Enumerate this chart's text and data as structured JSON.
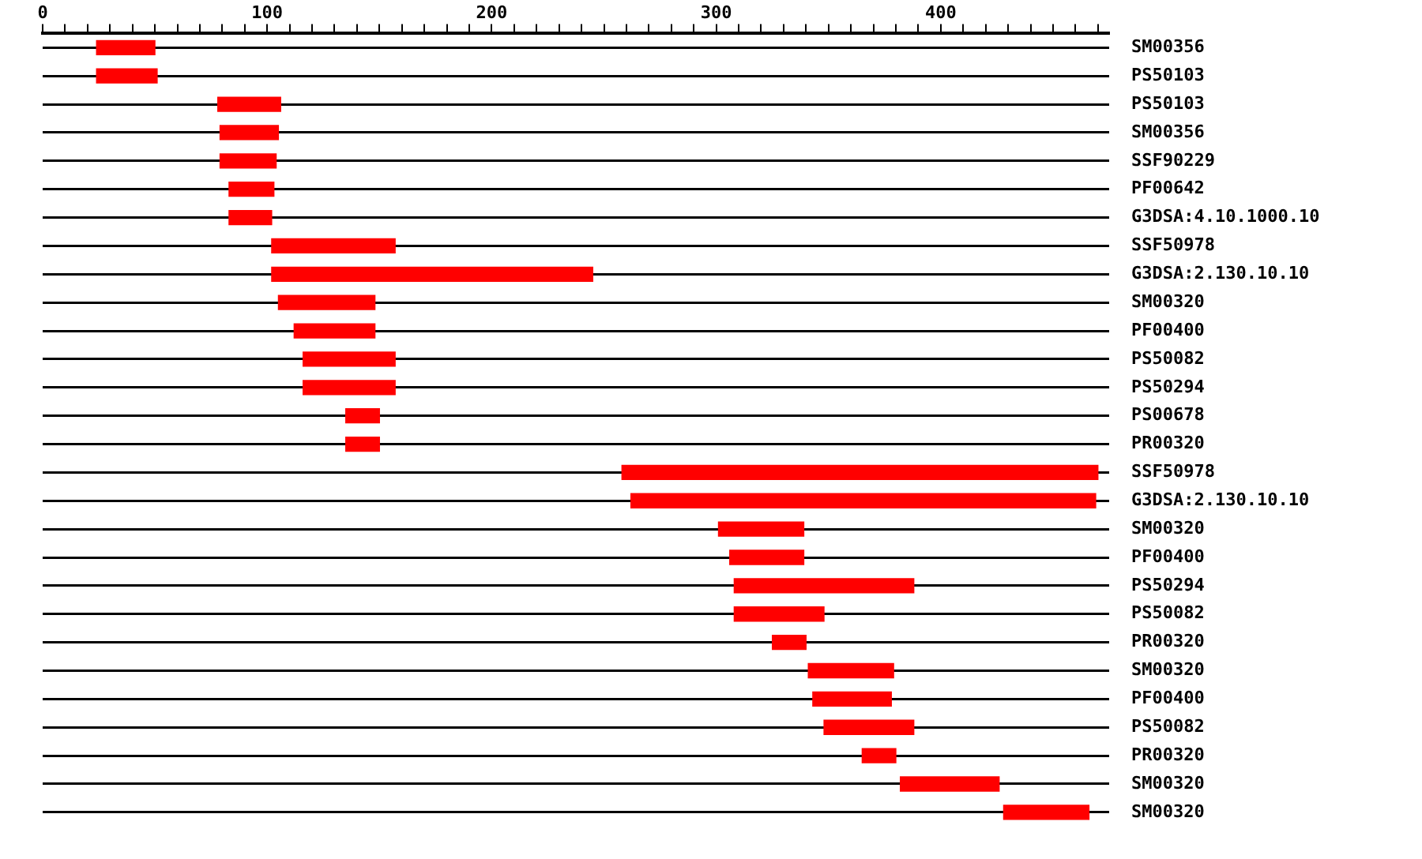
{
  "chart_data": {
    "type": "bar",
    "orientation": "horizontal",
    "grid": "y",
    "legend": false,
    "categories": [
      "SM00356",
      "PS50103",
      "PS50103",
      "SM00356",
      "SSF90229",
      "PF00642",
      "G3DSA:4.10.1000.10",
      "SSF50978",
      "G3DSA:2.130.10.10",
      "SM00320",
      "PF00400",
      "PS50082",
      "PS50294",
      "PS00678",
      "PR00320",
      "SSF50978",
      "G3DSA:2.130.10.10",
      "SM00320",
      "PF00400",
      "PS50294",
      "PS50082",
      "PR00320",
      "SM00320",
      "PF00400",
      "PS50082",
      "PR00320",
      "SM00320",
      "SM00320"
    ],
    "base": [
      24,
      24,
      78,
      79,
      79,
      83,
      83,
      102,
      102,
      105,
      112,
      116,
      116,
      135,
      135,
      258,
      262,
      301,
      306,
      308,
      308,
      325,
      341,
      343,
      348,
      365,
      382,
      428
    ],
    "values": [
      26,
      27,
      28,
      26,
      25,
      20,
      19,
      55,
      143,
      43,
      36,
      41,
      41,
      15,
      15,
      212,
      207,
      38,
      33,
      80,
      40,
      15,
      38,
      35,
      40,
      15,
      44,
      38
    ],
    "color": "#ff0000",
    "xlim": [
      0,
      475
    ],
    "xticks": [
      0,
      {
        "value": 10,
        "label": null
      },
      {
        "value": 20,
        "label": null
      },
      {
        "value": 30,
        "label": null
      },
      {
        "value": 40,
        "label": null
      },
      {
        "value": 50,
        "label": null
      },
      {
        "value": 60,
        "label": null
      },
      {
        "value": 70,
        "label": null
      },
      {
        "value": 80,
        "label": null
      },
      {
        "value": 90,
        "label": null
      },
      100,
      {
        "value": 110,
        "label": null
      },
      {
        "value": 120,
        "label": null
      },
      {
        "value": 130,
        "label": null
      },
      {
        "value": 140,
        "label": null
      },
      {
        "value": 150,
        "label": null
      },
      {
        "value": 160,
        "label": null
      },
      {
        "value": 170,
        "label": null
      },
      {
        "value": 180,
        "label": null
      },
      {
        "value": 190,
        "label": null
      },
      200,
      {
        "value": 210,
        "label": null
      },
      {
        "value": 220,
        "label": null
      },
      {
        "value": 230,
        "label": null
      },
      {
        "value": 240,
        "label": null
      },
      {
        "value": 250,
        "label": null
      },
      {
        "value": 260,
        "label": null
      },
      {
        "value": 270,
        "label": null
      },
      {
        "value": 280,
        "label": null
      },
      {
        "value": 290,
        "label": null
      },
      300,
      {
        "value": 310,
        "label": null
      },
      {
        "value": 320,
        "label": null
      },
      {
        "value": 330,
        "label": null
      },
      {
        "value": 340,
        "label": null
      },
      {
        "value": 350,
        "label": null
      },
      {
        "value": 360,
        "label": null
      },
      {
        "value": 370,
        "label": null
      },
      {
        "value": 380,
        "label": null
      },
      {
        "value": 390,
        "label": null
      },
      400,
      {
        "value": 410,
        "label": null
      },
      {
        "value": 420,
        "label": null
      },
      {
        "value": 430,
        "label": null
      },
      {
        "value": 440,
        "label": null
      },
      {
        "value": 450,
        "label": null
      },
      {
        "value": 460,
        "label": null
      },
      {
        "value": 470,
        "label": null
      }
    ]
  }
}
